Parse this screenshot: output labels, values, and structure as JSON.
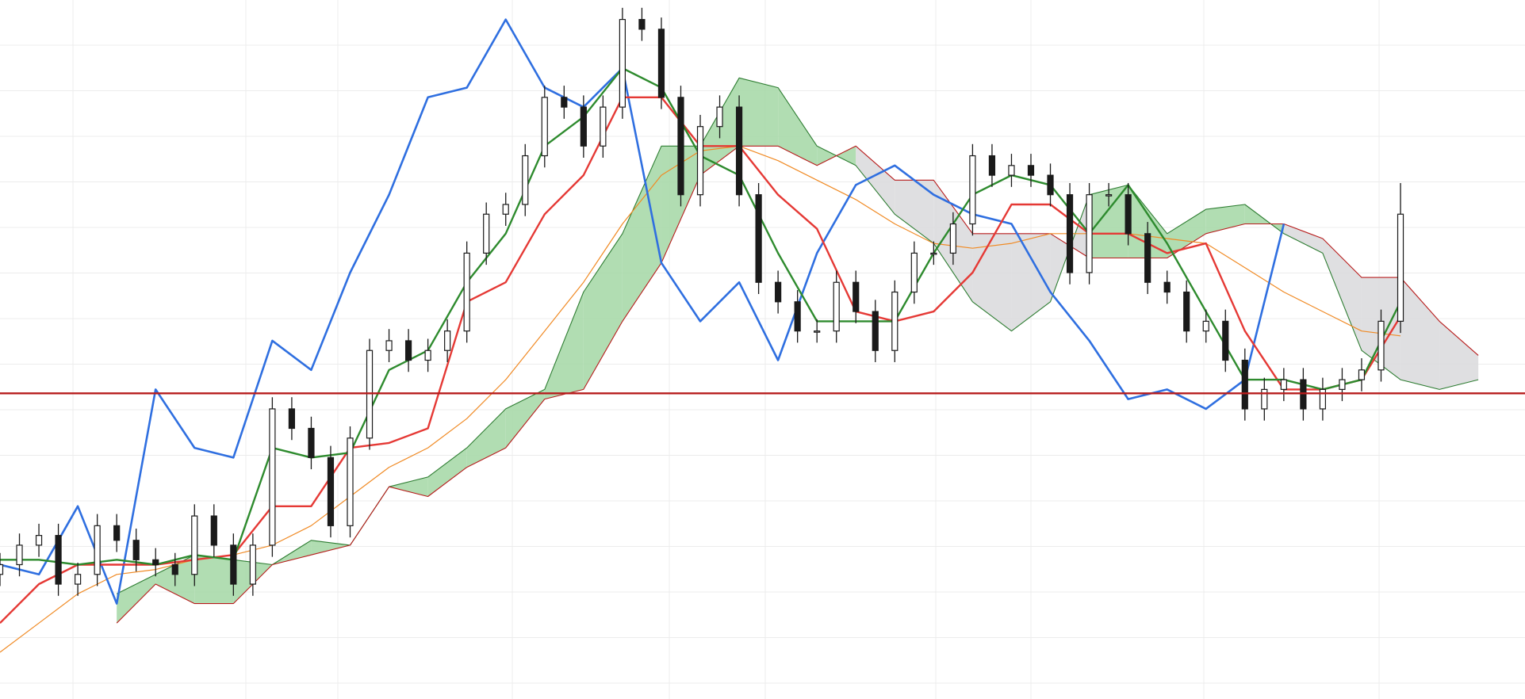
{
  "chart_data": {
    "type": "candlestick",
    "xlim": [
      0,
      1568
    ],
    "ylim": [
      0,
      718
    ],
    "candles": {
      "up_color": "#ffffff",
      "down_color": "#1a1a1a",
      "x": [
        0,
        20,
        40,
        60,
        80,
        100,
        120,
        140,
        160,
        180,
        200,
        220,
        240,
        260,
        280,
        300,
        320,
        340,
        360,
        380,
        400,
        420,
        440,
        460,
        480,
        500,
        520,
        540,
        560,
        580,
        600,
        620,
        640,
        660,
        680,
        700,
        720,
        740,
        760,
        780,
        800,
        820,
        840,
        860,
        880,
        900,
        920,
        940,
        960,
        980,
        1000,
        1020,
        1040,
        1060,
        1080,
        1100,
        1120,
        1140,
        1160,
        1180,
        1200,
        1220,
        1240,
        1260,
        1280,
        1300,
        1320,
        1340,
        1360,
        1380,
        1400,
        1420,
        1440
      ],
      "open": [
        128,
        138,
        158,
        168,
        118,
        128,
        178,
        163,
        143,
        138,
        128,
        188,
        158,
        118,
        158,
        298,
        278,
        248,
        178,
        268,
        358,
        368,
        348,
        358,
        378,
        458,
        498,
        508,
        558,
        618,
        608,
        568,
        608,
        698,
        688,
        618,
        518,
        588,
        608,
        518,
        428,
        408,
        378,
        378,
        428,
        398,
        358,
        418,
        458,
        458,
        488,
        558,
        538,
        548,
        538,
        518,
        438,
        518,
        518,
        478,
        428,
        418,
        378,
        388,
        348,
        298,
        318,
        328,
        298,
        318,
        328,
        338,
        388
      ],
      "high": [
        150,
        170,
        180,
        180,
        140,
        190,
        190,
        175,
        155,
        150,
        200,
        200,
        170,
        170,
        310,
        310,
        290,
        260,
        280,
        370,
        380,
        380,
        370,
        390,
        470,
        510,
        520,
        570,
        630,
        630,
        620,
        620,
        710,
        710,
        700,
        630,
        600,
        620,
        620,
        530,
        440,
        420,
        390,
        440,
        440,
        410,
        430,
        470,
        470,
        500,
        570,
        570,
        560,
        560,
        550,
        530,
        530,
        530,
        530,
        490,
        440,
        430,
        400,
        400,
        360,
        330,
        340,
        340,
        330,
        340,
        350,
        400,
        530
      ],
      "low": [
        116,
        126,
        146,
        106,
        106,
        116,
        151,
        131,
        126,
        116,
        116,
        146,
        106,
        106,
        146,
        266,
        236,
        166,
        166,
        256,
        346,
        336,
        336,
        346,
        366,
        446,
        486,
        496,
        546,
        596,
        556,
        556,
        596,
        676,
        606,
        506,
        506,
        576,
        506,
        416,
        396,
        366,
        366,
        366,
        386,
        346,
        346,
        406,
        446,
        446,
        476,
        526,
        526,
        526,
        506,
        426,
        426,
        506,
        466,
        416,
        406,
        366,
        366,
        336,
        286,
        286,
        306,
        286,
        286,
        306,
        316,
        326,
        376
      ],
      "close": [
        138,
        158,
        168,
        118,
        128,
        178,
        163,
        143,
        138,
        128,
        188,
        158,
        118,
        158,
        298,
        278,
        248,
        178,
        268,
        358,
        368,
        348,
        358,
        378,
        458,
        498,
        508,
        558,
        618,
        608,
        568,
        608,
        698,
        688,
        618,
        518,
        588,
        608,
        518,
        428,
        408,
        378,
        378,
        428,
        398,
        358,
        418,
        458,
        458,
        488,
        558,
        538,
        548,
        538,
        518,
        438,
        518,
        518,
        478,
        428,
        418,
        378,
        388,
        348,
        298,
        318,
        328,
        298,
        318,
        328,
        338,
        388,
        498
      ]
    },
    "line_x": [
      0,
      40,
      80,
      120,
      160,
      200,
      240,
      280,
      320,
      360,
      400,
      440,
      480,
      520,
      560,
      600,
      640,
      680,
      720,
      760,
      800,
      840,
      880,
      920,
      960,
      1000,
      1040,
      1080,
      1120,
      1160,
      1200,
      1240,
      1280,
      1320,
      1360,
      1400,
      1440,
      1480,
      1520,
      1560
    ],
    "cloud": {
      "bull_fill": "#a9d9aa",
      "bear_fill": "#dcdcde",
      "span_a": {
        "color": "#2e7d32",
        "values": [
          null,
          null,
          null,
          108,
          128,
          148,
          143,
          138,
          163,
          158,
          218,
          228,
          258,
          298,
          318,
          418,
          478,
          568,
          568,
          638,
          628,
          568,
          548,
          498,
          468,
          408,
          378,
          408,
          518,
          528,
          478,
          503,
          508,
          478,
          458,
          358,
          328,
          318,
          328,
          null
        ]
      },
      "span_b": {
        "color": "#b71c1c",
        "values": [
          null,
          null,
          null,
          78,
          118,
          98,
          98,
          138,
          148,
          158,
          218,
          208,
          238,
          258,
          308,
          318,
          388,
          448,
          538,
          568,
          568,
          548,
          568,
          533,
          533,
          478,
          478,
          478,
          453,
          453,
          453,
          478,
          488,
          488,
          473,
          433,
          433,
          388,
          353,
          null
        ]
      }
    },
    "series": [
      {
        "color": "#f08a24",
        "width": 1.2,
        "values": [
          48,
          78,
          108,
          128,
          133,
          143,
          148,
          158,
          178,
          208,
          238,
          258,
          288,
          328,
          378,
          428,
          488,
          538,
          563,
          568,
          553,
          533,
          513,
          488,
          468,
          463,
          468,
          478,
          478,
          478,
          473,
          468,
          443,
          418,
          398,
          378,
          373,
          null,
          null,
          null
        ]
      },
      {
        "color": "#2f6fe0",
        "width": 2.6,
        "values": [
          138,
          128,
          198,
          98,
          318,
          258,
          248,
          368,
          338,
          438,
          518,
          618,
          628,
          698,
          628,
          608,
          648,
          448,
          388,
          428,
          348,
          458,
          528,
          548,
          518,
          498,
          488,
          418,
          368,
          308,
          318,
          298,
          328,
          488,
          null,
          null,
          null,
          null,
          null,
          null
        ]
      },
      {
        "color": "#e53935",
        "width": 2.4,
        "values": [
          78,
          118,
          138,
          138,
          138,
          143,
          148,
          198,
          198,
          258,
          263,
          278,
          408,
          428,
          498,
          538,
          618,
          618,
          568,
          568,
          518,
          483,
          398,
          388,
          398,
          438,
          508,
          508,
          478,
          478,
          458,
          468,
          378,
          318,
          318,
          328,
          393,
          null,
          null,
          null
        ]
      },
      {
        "color": "#2e8b2e",
        "width": 2.4,
        "values": [
          143,
          143,
          138,
          143,
          138,
          148,
          143,
          258,
          248,
          253,
          338,
          358,
          428,
          478,
          568,
          598,
          648,
          628,
          558,
          538,
          458,
          388,
          388,
          388,
          458,
          518,
          538,
          528,
          478,
          528,
          468,
          398,
          328,
          328,
          318,
          328,
          408,
          null,
          null,
          null
        ]
      }
    ],
    "hline": {
      "value": 314,
      "color": "#b71c1c"
    }
  }
}
